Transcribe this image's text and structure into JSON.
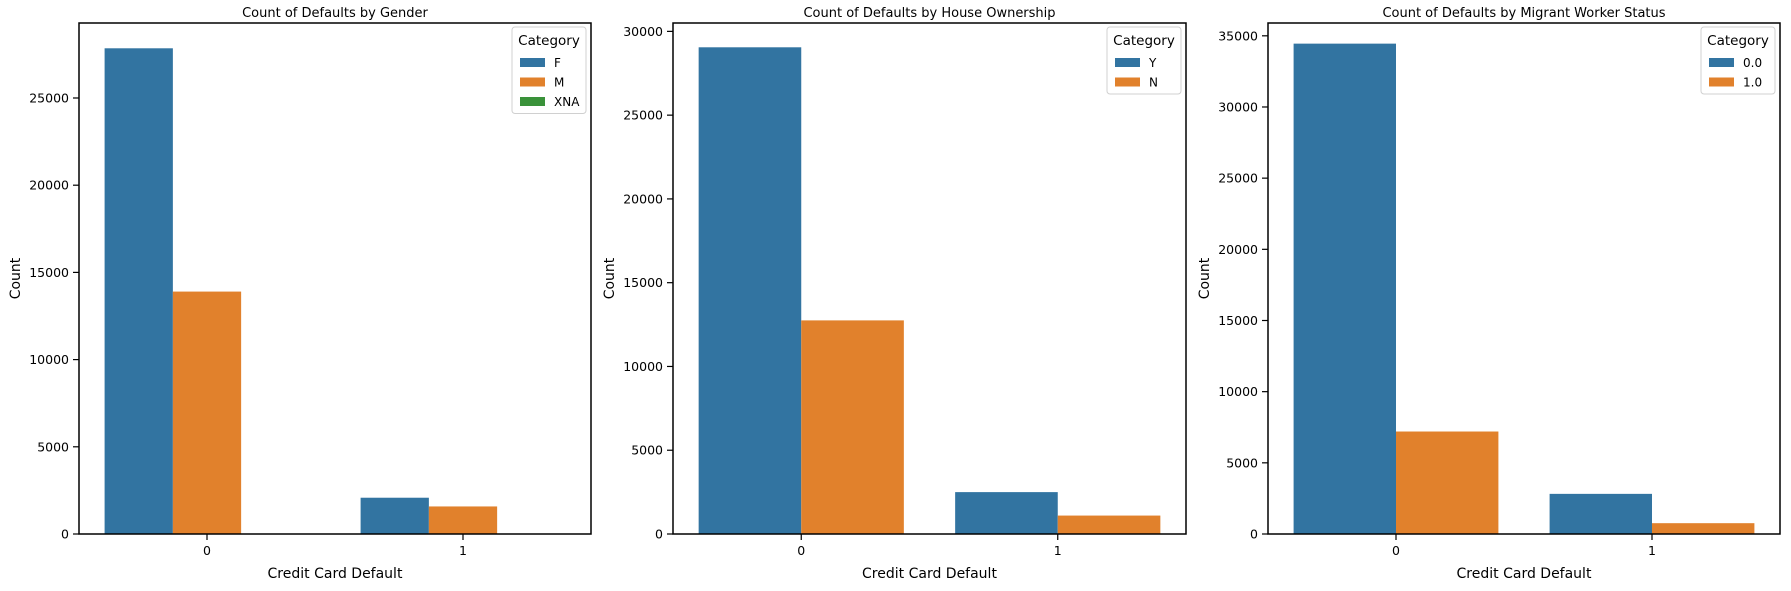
{
  "chart_data": [
    {
      "type": "bar",
      "title": "Count of Defaults by Gender",
      "xlabel": "Credit Card Default",
      "ylabel": "Count",
      "categories": [
        "0",
        "1"
      ],
      "ylim": [
        0,
        29300
      ],
      "yticks": [
        0,
        5000,
        10000,
        15000,
        20000,
        25000
      ],
      "legend": {
        "title": "Category",
        "placement": "top-right"
      },
      "series": [
        {
          "name": "F",
          "color": "#3274a1",
          "values": [
            27850,
            2080
          ]
        },
        {
          "name": "M",
          "color": "#e1812c",
          "values": [
            13900,
            1580
          ]
        },
        {
          "name": "XNA",
          "color": "#3a923a",
          "values": [
            0,
            0
          ]
        }
      ]
    },
    {
      "type": "bar",
      "title": "Count of Defaults by House Ownership",
      "xlabel": "Credit Card Default",
      "ylabel": "Count",
      "categories": [
        "0",
        "1"
      ],
      "ylim": [
        0,
        30500
      ],
      "yticks": [
        0,
        5000,
        10000,
        15000,
        20000,
        25000,
        30000
      ],
      "legend": {
        "title": "Category",
        "placement": "top-right"
      },
      "series": [
        {
          "name": "Y",
          "color": "#3274a1",
          "values": [
            29050,
            2500
          ]
        },
        {
          "name": "N",
          "color": "#e1812c",
          "values": [
            12750,
            1100
          ]
        }
      ]
    },
    {
      "type": "bar",
      "title": "Count of Defaults by Migrant Worker Status",
      "xlabel": "Credit Card Default",
      "ylabel": "Count",
      "categories": [
        "0",
        "1"
      ],
      "ylim": [
        0,
        35900
      ],
      "yticks": [
        0,
        5000,
        10000,
        15000,
        20000,
        25000,
        30000,
        35000
      ],
      "legend": {
        "title": "Category",
        "placement": "top-right"
      },
      "series": [
        {
          "name": "0.0",
          "color": "#3274a1",
          "values": [
            34450,
            2820
          ]
        },
        {
          "name": "1.0",
          "color": "#e1812c",
          "values": [
            7200,
            760
          ]
        }
      ]
    }
  ]
}
